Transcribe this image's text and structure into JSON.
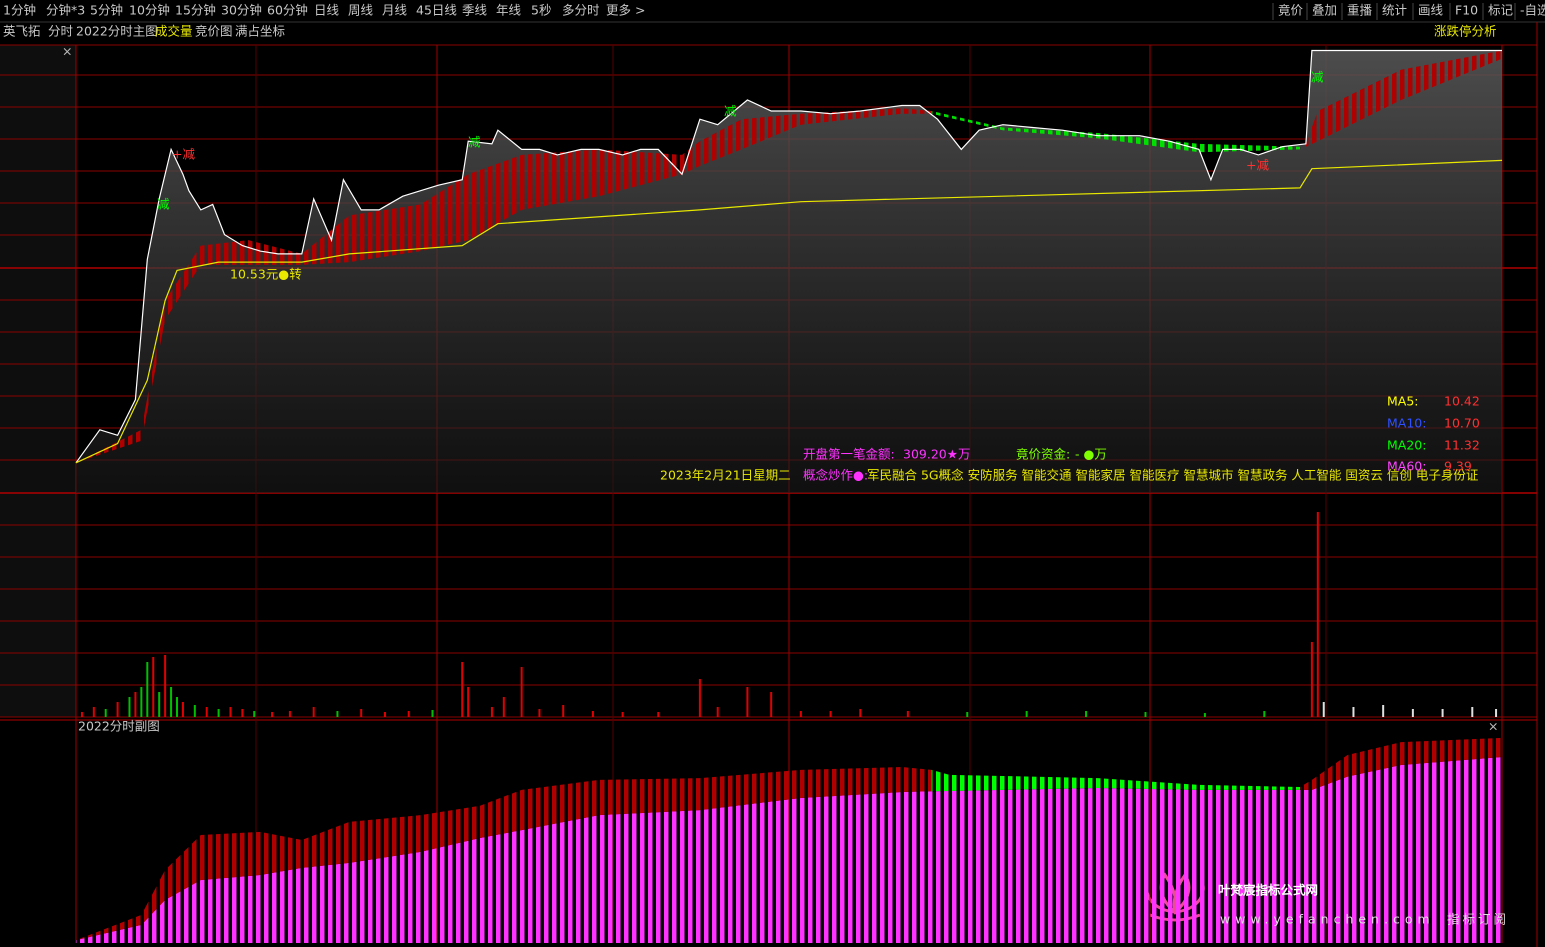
{
  "toolbar": {
    "left": [
      "1分钟",
      "分钟*3",
      "5分钟",
      "10分钟",
      "15分钟",
      "30分钟",
      "60分钟",
      "日线",
      "周线",
      "月线",
      "45日线",
      "季线",
      "年线",
      "5秒",
      "多分时",
      "更多 >"
    ],
    "right": [
      "竟价",
      "叠加",
      "重播",
      "统计",
      "画线",
      "F10",
      "标记",
      "-自选"
    ]
  },
  "header": {
    "stock": "英飞拓",
    "items": [
      "分时",
      "2022分时主图",
      "成交量",
      "竞价图",
      "满占坐标"
    ],
    "right": "涨跌停分析"
  },
  "chart_data": [
    {
      "type": "line",
      "xlim": [
        0,
        240
      ],
      "ylim": [
        9.69,
        11.32
      ],
      "series": [
        {
          "color": "#ffffff",
          "x": [
            0,
            4,
            7,
            10,
            12,
            14,
            16,
            18,
            19,
            21,
            23,
            25,
            28,
            31,
            34,
            38,
            40,
            43,
            45,
            48,
            51,
            55,
            58,
            61,
            65,
            66,
            70,
            71,
            75,
            78,
            81,
            85,
            88,
            92,
            95,
            98,
            102,
            105,
            108,
            113,
            117,
            122,
            127,
            132,
            139,
            142,
            145,
            149,
            152,
            156,
            161,
            166,
            172,
            179,
            184,
            189,
            191,
            193,
            196,
            199,
            203,
            207,
            208,
            240
          ],
          "values": [
            9.8,
            9.92,
            9.9,
            10.03,
            10.54,
            10.76,
            10.94,
            10.85,
            10.79,
            10.72,
            10.74,
            10.63,
            10.59,
            10.57,
            10.56,
            10.56,
            10.76,
            10.61,
            10.83,
            10.72,
            10.72,
            10.77,
            10.79,
            10.81,
            10.83,
            10.97,
            10.96,
            11.01,
            10.94,
            10.94,
            10.92,
            10.94,
            10.94,
            10.92,
            10.94,
            10.94,
            10.85,
            11.05,
            11.03,
            11.12,
            11.08,
            11.08,
            11.07,
            11.08,
            11.1,
            11.1,
            11.05,
            10.94,
            11.01,
            11.03,
            11.02,
            11.01,
            10.99,
            10.99,
            10.97,
            10.94,
            10.83,
            10.94,
            10.94,
            10.92,
            10.95,
            10.96,
            11.3,
            11.3
          ]
        },
        {
          "color": "#e8e800",
          "x": [
            0,
            7,
            12,
            15,
            17,
            24,
            38,
            46,
            65,
            71,
            105,
            122,
            156,
            206,
            208,
            240
          ],
          "values": [
            9.8,
            9.87,
            10.1,
            10.39,
            10.5,
            10.53,
            10.53,
            10.56,
            10.59,
            10.67,
            10.72,
            10.75,
            10.77,
            10.8,
            10.87,
            10.9
          ]
        }
      ],
      "band_x": [
        0,
        11,
        15,
        21,
        29,
        38,
        46,
        58,
        66,
        75,
        88,
        102,
        105,
        112,
        122,
        139,
        144,
        156,
        172,
        189,
        206,
        207,
        209,
        223,
        240
      ],
      "bands": [
        {
          "color": "#b00000",
          "top": [
            9.8,
            9.92,
            10.39,
            10.59,
            10.61,
            10.56,
            10.7,
            10.74,
            10.85,
            10.92,
            10.94,
            10.92,
            10.97,
            11.05,
            11.07,
            11.09,
            11.08,
            null,
            null,
            null,
            null,
            10.96,
            11.08,
            11.23,
            11.3
          ],
          "bottom": [
            9.8,
            9.88,
            10.32,
            10.52,
            10.52,
            10.52,
            10.53,
            10.57,
            10.61,
            10.72,
            10.77,
            10.85,
            10.88,
            10.94,
            11.03,
            11.07,
            11.07,
            null,
            null,
            null,
            null,
            10.95,
            10.97,
            11.12,
            11.27
          ]
        },
        {
          "color": "#00e000",
          "top": [
            null,
            null,
            null,
            null,
            null,
            null,
            null,
            null,
            null,
            null,
            null,
            null,
            null,
            null,
            null,
            null,
            11.08,
            11.02,
            11.0,
            10.96,
            10.95,
            null,
            null,
            null,
            null
          ],
          "bottom": [
            null,
            null,
            null,
            null,
            null,
            null,
            null,
            null,
            null,
            null,
            null,
            null,
            null,
            null,
            null,
            null,
            11.07,
            11.01,
            10.98,
            10.93,
            10.94,
            null,
            null,
            null,
            null
          ]
        }
      ],
      "annotations": [
        "减",
        "+减",
        "减",
        "减",
        "+减",
        "减"
      ],
      "annotation_colors": [
        "#00ff00",
        "#ff3030",
        "#00ff00",
        "#00ff00",
        "#ff3030",
        "#00ff00"
      ],
      "avg_label": "10.53元●转",
      "info": {
        "first_label": "开盘第一笔金额:",
        "first_value": "309.20★万",
        "auction_label": "竟价资金:",
        "auction_value": "- ●万",
        "date": "2023年2月21日星期二",
        "concept_label": "概念炒作●:",
        "concepts": "军民融合 5G概念 安防服务 智能交通 智能家居 智能医疗 智慧城市 智慧政务 人工智能 国资云 信创 电子身份证"
      },
      "ma": [
        {
          "label": "MA5:",
          "value": "10.42",
          "color": "#ffff00"
        },
        {
          "label": "MA10:",
          "value": "10.70",
          "color": "#3050ff"
        },
        {
          "label": "MA20:",
          "value": "11.32",
          "color": "#00ff00"
        },
        {
          "label": "MA60:",
          "value": "9.39",
          "color": "#ff44ff"
        }
      ]
    },
    {
      "type": "bar",
      "xlim": [
        0,
        240
      ],
      "ylim": [
        0,
        22400
      ],
      "x": [
        1,
        3,
        5,
        7,
        9,
        10,
        11,
        12,
        13,
        14,
        15,
        16,
        17,
        18,
        20,
        22,
        24,
        26,
        28,
        30,
        33,
        36,
        40,
        44,
        48,
        52,
        56,
        60,
        65,
        66,
        70,
        72,
        75,
        78,
        82,
        87,
        92,
        98,
        105,
        108,
        113,
        117,
        122,
        127,
        132,
        140,
        150,
        160,
        170,
        180,
        190,
        200,
        208,
        209,
        210,
        215,
        220,
        225,
        230,
        235,
        239
      ],
      "values": [
        500,
        1000,
        800,
        1500,
        2000,
        2500,
        3000,
        5500,
        6000,
        2500,
        6200,
        3000,
        2000,
        1500,
        1200,
        1000,
        800,
        1000,
        800,
        600,
        500,
        600,
        1000,
        600,
        800,
        500,
        600,
        700,
        5500,
        3000,
        1000,
        2000,
        5000,
        800,
        1200,
        600,
        500,
        500,
        3800,
        1000,
        3000,
        2500,
        600,
        600,
        800,
        600,
        500,
        600,
        600,
        500,
        400,
        600,
        7500,
        20500,
        1500,
        1000,
        1200,
        800,
        800,
        1000,
        800
      ],
      "colors": [
        "#e00000",
        "#e00000",
        "#00c000",
        "#e00000",
        "#00c000",
        "#e00000",
        "#00c000",
        "#00c000",
        "#e00000",
        "#00c000",
        "#e00000",
        "#00c000",
        "#00c000",
        "#e00000",
        "#00c000",
        "#e00000",
        "#00c000",
        "#e00000",
        "#e00000",
        "#00c000",
        "#e00000",
        "#e00000",
        "#e00000",
        "#00c000",
        "#e00000",
        "#e00000",
        "#e00000",
        "#00c000",
        "#e00000",
        "#e00000",
        "#e00000",
        "#e00000",
        "#e00000",
        "#e00000",
        "#e00000",
        "#e00000",
        "#e00000",
        "#e00000",
        "#e00000",
        "#e00000",
        "#e00000",
        "#e00000",
        "#e00000",
        "#e00000",
        "#e00000",
        "#e00000",
        "#00c000",
        "#00c000",
        "#00c000",
        "#00c000",
        "#00c000",
        "#00c000",
        "#e00000",
        "#e00000",
        "#e0e0e0",
        "#e0e0e0",
        "#e0e0e0",
        "#e0e0e0",
        "#e0e0e0",
        "#e0e0e0",
        "#e0e0e0"
      ]
    },
    {
      "type": "bar",
      "title": "2022分时副图",
      "xlim": [
        0,
        240
      ],
      "ylim": [
        0,
        100
      ],
      "x": [
        0,
        11,
        15,
        21,
        31,
        38,
        46,
        58,
        68,
        75,
        88,
        105,
        122,
        139,
        144,
        147,
        156,
        172,
        189,
        206,
        208,
        214,
        223,
        240
      ],
      "series": [
        {
          "color": "#ff33ff",
          "values": [
            1.4,
            8.7,
            20.7,
            30.3,
            32.7,
            36.1,
            38.5,
            43.8,
            50.5,
            54.3,
            61.5,
            63.9,
            69.7,
            72.6,
            73.0,
            73.1,
            73.6,
            74.5,
            73.6,
            73.6,
            73.6,
            80.0,
            85.6,
            89.4
          ]
        },
        {
          "color": "#b00000",
          "values": [
            1.4,
            13.5,
            35.1,
            51.9,
            53.4,
            49.5,
            58.2,
            61.5,
            66.0,
            73.6,
            78.4,
            79.3,
            83.2,
            84.6,
            83.2,
            null,
            null,
            null,
            null,
            75.0,
            78.4,
            90.4,
            96.6,
            98.6
          ]
        },
        {
          "color": "#00ff00",
          "values": [
            null,
            null,
            null,
            null,
            null,
            null,
            null,
            null,
            null,
            null,
            null,
            null,
            null,
            null,
            83.2,
            80.8,
            80.3,
            79.3,
            76.0,
            75.0,
            null,
            null,
            null,
            null
          ]
        }
      ]
    }
  ],
  "watermark": {
    "title": "叶梵宸指标公式网",
    "url": "www.yefanchen.com",
    "tag": "指标订阅"
  }
}
